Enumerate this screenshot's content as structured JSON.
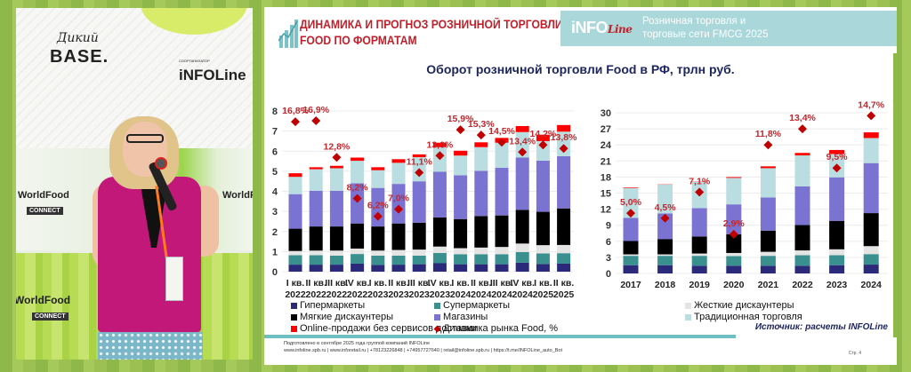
{
  "photo": {
    "logos": {
      "wild_base_script": "Дикий",
      "wild_base": "BASE.",
      "co_organizer": "СООРГАНИЗАТОР",
      "infoline": "iNFOLine",
      "worldfood": "WorldFood",
      "connect": "CONNECT"
    }
  },
  "slide": {
    "title_line1": "ДИНАМИКА И ПРОГНОЗ РОЗНИЧНОЙ ТОРГОВЛИ",
    "title_line2": "FOOD ПО ФОРМАТАМ",
    "brand": {
      "info": "iNFO",
      "line": "Line"
    },
    "brand_caption_line1": "Розничная торговля и",
    "brand_caption_line2": "торговые сети FMCG 2025",
    "subtitle": "Оборот розничной торговли Food в РФ, трлн руб.",
    "source": "Источник: расчеты INFOLine",
    "footer_line1": "Подготовлено в сентябре 2025 года группой компаний INFOLine",
    "footer_line2": "www.infoline.spb.ru | www.inforetail.ru | +78123226848 | +74957727640 | retail@infoline.spb.ru | https://t.me/INFOLine_auto_Bot",
    "page": "Стр. 4"
  },
  "legend": [
    {
      "label": "Гипермаркеты",
      "color": "#2b2a7a"
    },
    {
      "label": "Супермаркеты",
      "color": "#3a8f8f"
    },
    {
      "label": "Жесткие дискаунтеры",
      "color": "#e4e4e4"
    },
    {
      "label": "Мягкие дискаунтеры",
      "color": "#000000"
    },
    {
      "label": "Магазины",
      "color": "#7b73d1"
    },
    {
      "label": "Традиционная торговля",
      "color": "#b9dde0"
    },
    {
      "label": "Online-продажи без сервисов доставки",
      "color": "#ff0000"
    },
    {
      "label": "Динамика рынка Food, %",
      "color": "#c00000",
      "marker": "diamond"
    }
  ],
  "chart_data": [
    {
      "type": "bar",
      "stacked": true,
      "title": "Оборот розничной торговли Food в РФ, трлн руб. (поквартально)",
      "categories": [
        [
          "I кв.",
          "2022"
        ],
        [
          "II кв.",
          "2022"
        ],
        [
          "III кв.",
          "2022"
        ],
        [
          "IV кв.",
          "2022"
        ],
        [
          "I кв.",
          "2023"
        ],
        [
          "II кв.",
          "2023"
        ],
        [
          "III кв.",
          "2023"
        ],
        [
          "IV кв.",
          "2023"
        ],
        [
          "I кв.",
          "2024"
        ],
        [
          "II кв.",
          "2024"
        ],
        [
          "III кв.",
          "2024"
        ],
        [
          "IV кв.",
          "2024"
        ],
        [
          "I кв.",
          "2025"
        ],
        [
          "II кв.",
          "2025"
        ]
      ],
      "ylim": [
        0,
        8
      ],
      "yticks": [
        "0",
        "1",
        "2",
        "3",
        "4",
        "5",
        "6",
        "7",
        "8"
      ],
      "grid": true,
      "series": [
        {
          "name": "Гипермаркеты",
          "values": [
            0.35,
            0.35,
            0.35,
            0.4,
            0.33,
            0.35,
            0.37,
            0.42,
            0.37,
            0.37,
            0.37,
            0.45,
            0.38,
            0.4
          ]
        },
        {
          "name": "Супермаркеты",
          "values": [
            0.47,
            0.47,
            0.45,
            0.48,
            0.47,
            0.45,
            0.43,
            0.51,
            0.5,
            0.5,
            0.5,
            0.53,
            0.53,
            0.52
          ]
        },
        {
          "name": "Жесткие дискаунтеры",
          "values": [
            0.21,
            0.23,
            0.25,
            0.27,
            0.25,
            0.28,
            0.3,
            0.32,
            0.3,
            0.33,
            0.36,
            0.42,
            0.41,
            0.41
          ]
        },
        {
          "name": "Мягкие дискаунтеры",
          "values": [
            1.11,
            1.2,
            1.2,
            1.25,
            1.2,
            1.32,
            1.34,
            1.45,
            1.45,
            1.57,
            1.57,
            1.68,
            1.66,
            1.82
          ]
        },
        {
          "name": "Магазины",
          "values": [
            1.72,
            1.78,
            1.78,
            2.0,
            1.92,
            1.97,
            2.06,
            2.28,
            2.18,
            2.25,
            2.37,
            2.6,
            2.55,
            2.6
          ]
        },
        {
          "name": "Традиционная торговля",
          "values": [
            0.86,
            1.07,
            1.12,
            1.12,
            0.88,
            1.05,
            1.2,
            1.22,
            0.98,
            1.18,
            1.25,
            1.27,
            0.97,
            1.22
          ]
        },
        {
          "name": "Online-продажи без сервисов доставки",
          "values": [
            0.18,
            0.1,
            0.12,
            0.16,
            0.15,
            0.18,
            0.14,
            0.22,
            0.24,
            0.24,
            0.24,
            0.3,
            0.32,
            0.33
          ]
        }
      ],
      "line_series": {
        "name": "Динамика рынка Food, %",
        "values": [
          16.8,
          16.9,
          12.8,
          8.2,
          6.2,
          7.0,
          11.1,
          13.0,
          15.9,
          15.3,
          14.5,
          13.4,
          14.2,
          13.8
        ],
        "labels": [
          "16,8%",
          "16,9%",
          "12,8%",
          "8,2%",
          "6,2%",
          "7,0%",
          "11,1%",
          "13,0%",
          "15,9%",
          "15,3%",
          "14,5%",
          "13,4%",
          "14,2%",
          "13,8%"
        ],
        "secondary_ylim": [
          0,
          18
        ]
      }
    },
    {
      "type": "bar",
      "stacked": true,
      "title": "Оборот розничной торговли Food в РФ, трлн руб. (по годам)",
      "categories": [
        "2017",
        "2018",
        "2019",
        "2020",
        "2021",
        "2022",
        "2023",
        "2024"
      ],
      "ylim": [
        0,
        30
      ],
      "yticks": [
        "0",
        "3",
        "6",
        "9",
        "12",
        "15",
        "18",
        "21",
        "24",
        "27",
        "30"
      ],
      "grid": true,
      "series": [
        {
          "name": "Гипермаркеты",
          "values": [
            1.54,
            1.54,
            1.43,
            1.43,
            1.43,
            1.43,
            1.54,
            1.65
          ]
        },
        {
          "name": "Супермаркеты",
          "values": [
            1.75,
            1.75,
            1.86,
            1.81,
            1.86,
            1.97,
            1.86,
            1.96
          ]
        },
        {
          "name": "Жесткие дискаунтеры",
          "values": [
            0.27,
            0.27,
            0.43,
            0.58,
            0.75,
            0.9,
            1.11,
            1.49
          ]
        },
        {
          "name": "Мягкие дискаунтеры",
          "values": [
            2.49,
            2.87,
            3.18,
            3.51,
            3.96,
            4.73,
            5.31,
            6.16
          ]
        },
        {
          "name": "Магазины",
          "values": [
            4.31,
            4.77,
            5.3,
            5.57,
            6.18,
            7.22,
            8.13,
            9.34
          ]
        },
        {
          "name": "Традиционная торговля",
          "values": [
            5.57,
            5.37,
            4.9,
            4.94,
            5.47,
            5.79,
            4.35,
            4.68
          ]
        },
        {
          "name": "Online-продажи без сервисов доставки",
          "values": [
            0.11,
            0.05,
            0.05,
            0.16,
            0.35,
            0.46,
            0.75,
            1.06
          ]
        }
      ],
      "line_series": {
        "name": "Динамика рынка Food, %",
        "values": [
          5.0,
          4.5,
          7.1,
          2.9,
          11.8,
          13.4,
          9.5,
          14.7
        ],
        "labels": [
          "5,0%",
          "4,5%",
          "7,1%",
          "2,9%",
          "11,8%",
          "13,4%",
          "9,5%",
          "14,7%"
        ],
        "secondary_ylim": [
          -1,
          15
        ]
      }
    }
  ]
}
